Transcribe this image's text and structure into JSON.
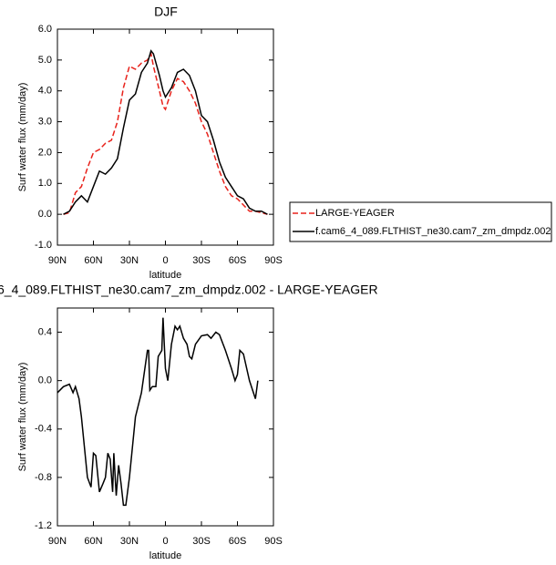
{
  "chart_data": [
    {
      "type": "line",
      "title": "DJF",
      "x_label": "latitude",
      "y_label": "Surf water flux (mm/day)",
      "xlim": [
        90,
        -90
      ],
      "xticks": [
        {
          "value": 90,
          "label": "90N"
        },
        {
          "value": 60,
          "label": "60N"
        },
        {
          "value": 30,
          "label": "30N"
        },
        0,
        {
          "value": -30,
          "label": "30S"
        },
        {
          "value": -60,
          "label": "60S"
        },
        {
          "value": -90,
          "label": "90S"
        }
      ],
      "ylim": [
        -1,
        6
      ],
      "yticks": [
        {
          "value": -1,
          "label": "-1.0"
        },
        {
          "value": 0,
          "label": "0.0"
        },
        {
          "value": 1,
          "label": "1.0"
        },
        {
          "value": 2,
          "label": "2.0"
        },
        {
          "value": 3,
          "label": "3.0"
        },
        {
          "value": 4,
          "label": "4.0"
        },
        {
          "value": 5,
          "label": "5.0"
        },
        {
          "value": 6,
          "label": "6.0"
        }
      ],
      "legend": "outside-right",
      "x": [
        85,
        80,
        75,
        70,
        65,
        60,
        55,
        50,
        45,
        40,
        35,
        30,
        25,
        20,
        15,
        12,
        10,
        5,
        2,
        0,
        -5,
        -10,
        -15,
        -20,
        -25,
        -30,
        -35,
        -40,
        -45,
        -50,
        -55,
        -60,
        -65,
        -70,
        -75,
        -80,
        -85
      ],
      "series": [
        {
          "name": "LARGE-YEAGER",
          "color": "#e8221b",
          "dashed": true,
          "values": [
            0,
            0.05,
            0.7,
            0.9,
            1.5,
            2.0,
            2.1,
            2.3,
            2.4,
            3.0,
            4.1,
            4.8,
            4.7,
            4.9,
            5.0,
            5.2,
            4.8,
            4.0,
            3.5,
            3.4,
            4.0,
            4.4,
            4.3,
            4.0,
            3.6,
            3.0,
            2.6,
            2.0,
            1.4,
            0.9,
            0.6,
            0.5,
            0.3,
            0.1,
            0.1,
            0.05,
            0
          ]
        },
        {
          "name": "f.cam6_4_089.FLTHIST_ne30.cam7_zm_dmpdz.002",
          "color": "#000000",
          "dashed": false,
          "values": [
            0,
            0.1,
            0.4,
            0.6,
            0.4,
            0.9,
            1.4,
            1.3,
            1.5,
            1.8,
            2.8,
            3.7,
            3.9,
            4.6,
            4.9,
            5.3,
            5.2,
            4.5,
            4.0,
            3.8,
            4.1,
            4.6,
            4.7,
            4.5,
            4.0,
            3.2,
            3.0,
            2.4,
            1.7,
            1.2,
            0.9,
            0.6,
            0.5,
            0.2,
            0.1,
            0.1,
            0
          ]
        }
      ]
    },
    {
      "type": "line",
      "title": "6_4_089.FLTHIST_ne30.cam7_zm_dmpdz.002 - LARGE-YEAGER",
      "x_label": "latitude",
      "y_label": "Surf water flux (mm/day)",
      "xlim": [
        90,
        -90
      ],
      "xticks": [
        {
          "value": 90,
          "label": "90N"
        },
        {
          "value": 60,
          "label": "60N"
        },
        {
          "value": 30,
          "label": "30N"
        },
        0,
        {
          "value": -30,
          "label": "30S"
        },
        {
          "value": -60,
          "label": "60S"
        },
        {
          "value": -90,
          "label": "90S"
        }
      ],
      "ylim": [
        -1.2,
        0.6
      ],
      "yticks": [
        -1.2,
        -0.8,
        -0.4,
        {
          "value": 0,
          "label": "0.0"
        },
        0.4
      ],
      "x": [
        90,
        85,
        80,
        77,
        75,
        72,
        70,
        67,
        65,
        62,
        60,
        58,
        55,
        52,
        50,
        48,
        46,
        44,
        43,
        41,
        39,
        37,
        35,
        33,
        30,
        27,
        25,
        20,
        15,
        14,
        13,
        11,
        8,
        6,
        3,
        2,
        0,
        -2,
        -5,
        -8,
        -10,
        -12,
        -15,
        -18,
        -20,
        -22,
        -25,
        -30,
        -35,
        -38,
        -42,
        -45,
        -50,
        -55,
        -58,
        -60,
        -62,
        -65,
        -70,
        -75,
        -77
      ],
      "series": [
        {
          "color": "#000000",
          "values": [
            -0.1,
            -0.05,
            -0.03,
            -0.1,
            -0.05,
            -0.15,
            -0.3,
            -0.6,
            -0.8,
            -0.88,
            -0.6,
            -0.62,
            -0.92,
            -0.85,
            -0.8,
            -0.6,
            -0.65,
            -0.92,
            -0.6,
            -0.95,
            -0.7,
            -0.85,
            -1.03,
            -1.03,
            -0.8,
            -0.5,
            -0.3,
            -0.1,
            0.25,
            0.25,
            -0.08,
            -0.05,
            -0.05,
            0.2,
            0.25,
            0.52,
            0.1,
            0,
            0.3,
            0.45,
            0.42,
            0.45,
            0.35,
            0.3,
            0.2,
            0.18,
            0.3,
            0.37,
            0.38,
            0.35,
            0.4,
            0.38,
            0.25,
            0.1,
            0,
            0.05,
            0.25,
            0.22,
            0,
            -0.15,
            0
          ]
        }
      ]
    }
  ]
}
